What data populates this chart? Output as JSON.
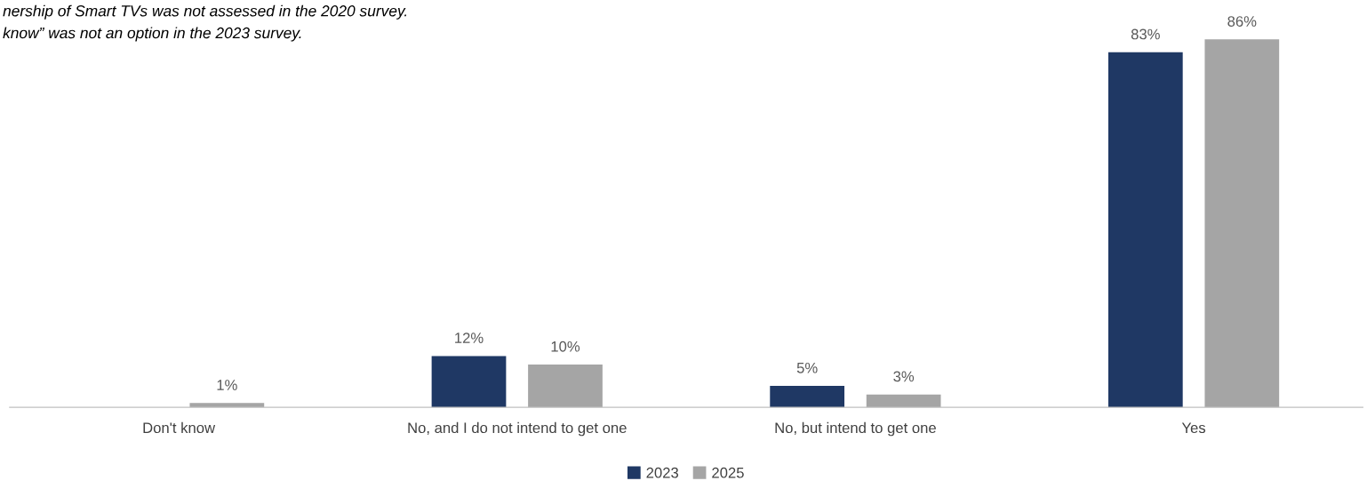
{
  "chart_data": {
    "type": "bar",
    "categories": [
      "Don't know",
      "No, and I do not intend to get one",
      "No, but intend to get one",
      "Yes"
    ],
    "series": [
      {
        "name": "2023",
        "color": "#1f3864",
        "values": [
          null,
          12,
          5,
          83
        ],
        "value_labels": [
          null,
          "12%",
          "5%",
          "83%"
        ]
      },
      {
        "name": "2025",
        "color": "#a5a5a5",
        "values": [
          1,
          10,
          3,
          86
        ],
        "value_labels": [
          "1%",
          "10%",
          "3%",
          "86%"
        ]
      }
    ],
    "legend": "bottom",
    "annotations": [
      "nership of Smart TVs was not assessed in the 2020 survey.",
      "know” was not an option in the 2023 survey."
    ]
  }
}
